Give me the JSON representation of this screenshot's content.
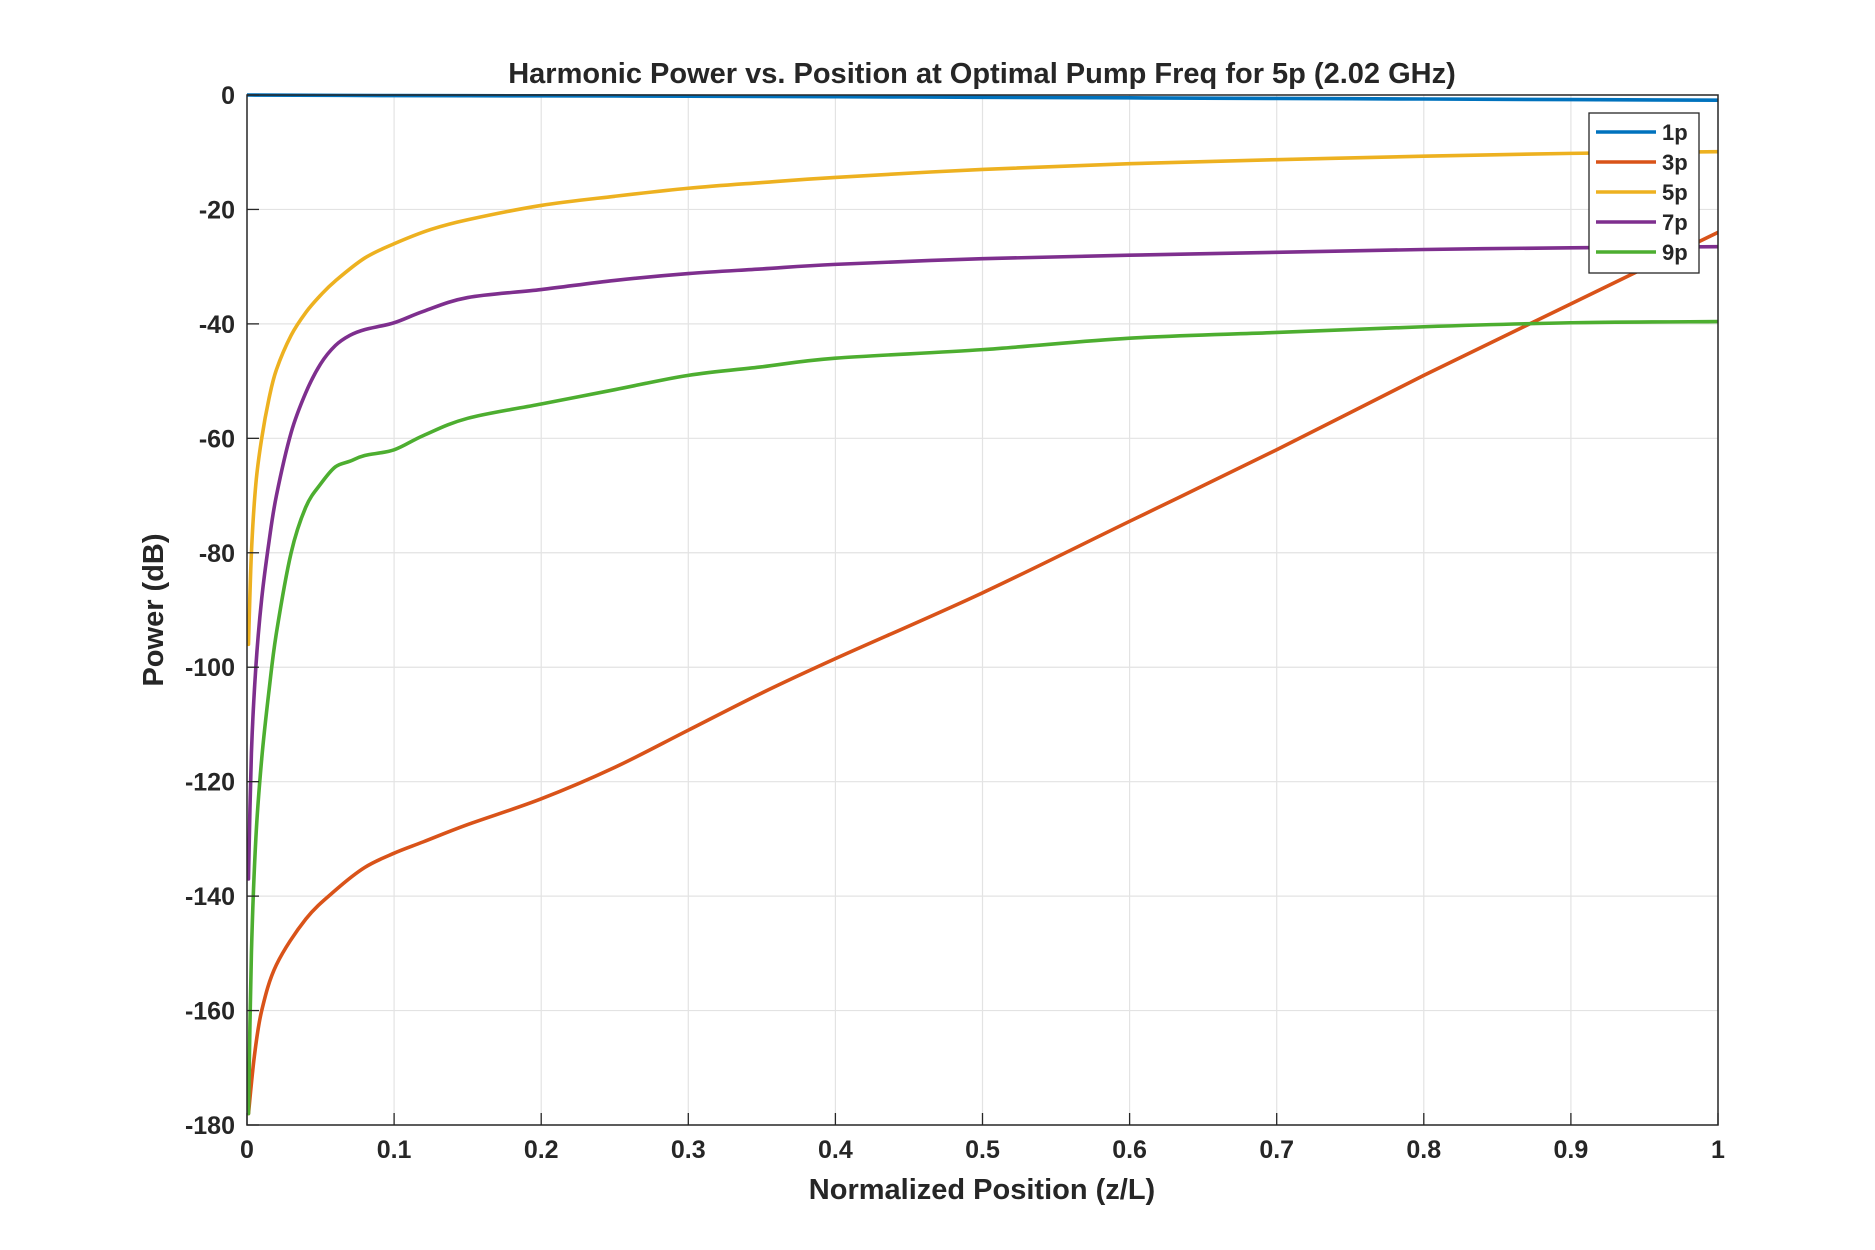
{
  "chart_data": {
    "type": "line",
    "title": "Harmonic Power vs. Position at Optimal Pump Freq for 5p (2.02 GHz)",
    "xlabel": "Normalized Position (z/L)",
    "ylabel": "Power (dB)",
    "xlim": [
      0,
      1
    ],
    "ylim": [
      -180,
      0
    ],
    "xticks": [
      0,
      0.1,
      0.2,
      0.3,
      0.4,
      0.5,
      0.6,
      0.7,
      0.8,
      0.9,
      1
    ],
    "xtick_labels": [
      "0",
      "0.1",
      "0.2",
      "0.3",
      "0.4",
      "0.5",
      "0.6",
      "0.7",
      "0.8",
      "0.9",
      "1"
    ],
    "yticks": [
      0,
      -20,
      -40,
      -60,
      -80,
      -100,
      -120,
      -140,
      -160,
      -180
    ],
    "ytick_labels": [
      "0",
      "-20",
      "-40",
      "-60",
      "-80",
      "-100",
      "-120",
      "-140",
      "-160",
      "-180"
    ],
    "grid": true,
    "legend_position": "top-right",
    "series": [
      {
        "name": "1p",
        "color": "#0072BD",
        "x": [
          0,
          0.1,
          0.2,
          0.3,
          0.4,
          0.5,
          0.6,
          0.7,
          0.8,
          0.9,
          1
        ],
        "y": [
          0,
          -0.1,
          -0.15,
          -0.2,
          -0.3,
          -0.4,
          -0.5,
          -0.6,
          -0.7,
          -0.8,
          -0.9
        ]
      },
      {
        "name": "3p",
        "color": "#D95319",
        "x": [
          0.001,
          0.005,
          0.01,
          0.02,
          0.04,
          0.06,
          0.08,
          0.1,
          0.12,
          0.15,
          0.2,
          0.25,
          0.3,
          0.35,
          0.4,
          0.5,
          0.6,
          0.7,
          0.8,
          0.9,
          1
        ],
        "y": [
          -178,
          -168,
          -160,
          -152,
          -144,
          -139,
          -135,
          -132.5,
          -130.5,
          -127.5,
          -123,
          -117.5,
          -111,
          -104.5,
          -98.5,
          -87,
          -74.5,
          -62,
          -49,
          -36.5,
          -24
        ]
      },
      {
        "name": "5p",
        "color": "#EDB120",
        "x": [
          0.001,
          0.003,
          0.006,
          0.01,
          0.015,
          0.02,
          0.03,
          0.04,
          0.05,
          0.06,
          0.08,
          0.1,
          0.125,
          0.15,
          0.2,
          0.25,
          0.3,
          0.35,
          0.4,
          0.5,
          0.6,
          0.7,
          0.8,
          0.9,
          1
        ],
        "y": [
          -96,
          -80,
          -68,
          -60,
          -53,
          -48,
          -42,
          -38,
          -35,
          -32.5,
          -28.5,
          -26,
          -23.5,
          -21.8,
          -19.3,
          -17.7,
          -16.3,
          -15.3,
          -14.4,
          -13,
          -12,
          -11.3,
          -10.7,
          -10.2,
          -9.9
        ]
      },
      {
        "name": "7p",
        "color": "#7E2F8E",
        "x": [
          0.001,
          0.003,
          0.006,
          0.01,
          0.015,
          0.02,
          0.03,
          0.04,
          0.05,
          0.06,
          0.07,
          0.08,
          0.1,
          0.12,
          0.15,
          0.2,
          0.25,
          0.3,
          0.35,
          0.4,
          0.5,
          0.6,
          0.7,
          0.8,
          0.9,
          1
        ],
        "y": [
          -137,
          -115,
          -100,
          -88,
          -78,
          -70,
          -59,
          -52,
          -47,
          -43.8,
          -42,
          -41,
          -39.8,
          -37.8,
          -35.4,
          -34,
          -32.4,
          -31.2,
          -30.4,
          -29.6,
          -28.6,
          -28,
          -27.5,
          -27,
          -26.7,
          -26.5
        ]
      },
      {
        "name": "9p",
        "color": "#4DAE30",
        "x": [
          0.001,
          0.003,
          0.006,
          0.01,
          0.015,
          0.02,
          0.03,
          0.04,
          0.05,
          0.06,
          0.07,
          0.08,
          0.1,
          0.12,
          0.15,
          0.2,
          0.25,
          0.3,
          0.35,
          0.4,
          0.5,
          0.6,
          0.7,
          0.8,
          0.9,
          1
        ],
        "y": [
          -178,
          -150,
          -130,
          -116,
          -104,
          -94,
          -80,
          -72,
          -68,
          -65,
          -64,
          -63,
          -62,
          -59.5,
          -56.5,
          -54,
          -51.5,
          -49,
          -47.5,
          -46,
          -44.5,
          -42.5,
          -41.5,
          -40.5,
          -39.8,
          -39.6
        ]
      }
    ]
  }
}
